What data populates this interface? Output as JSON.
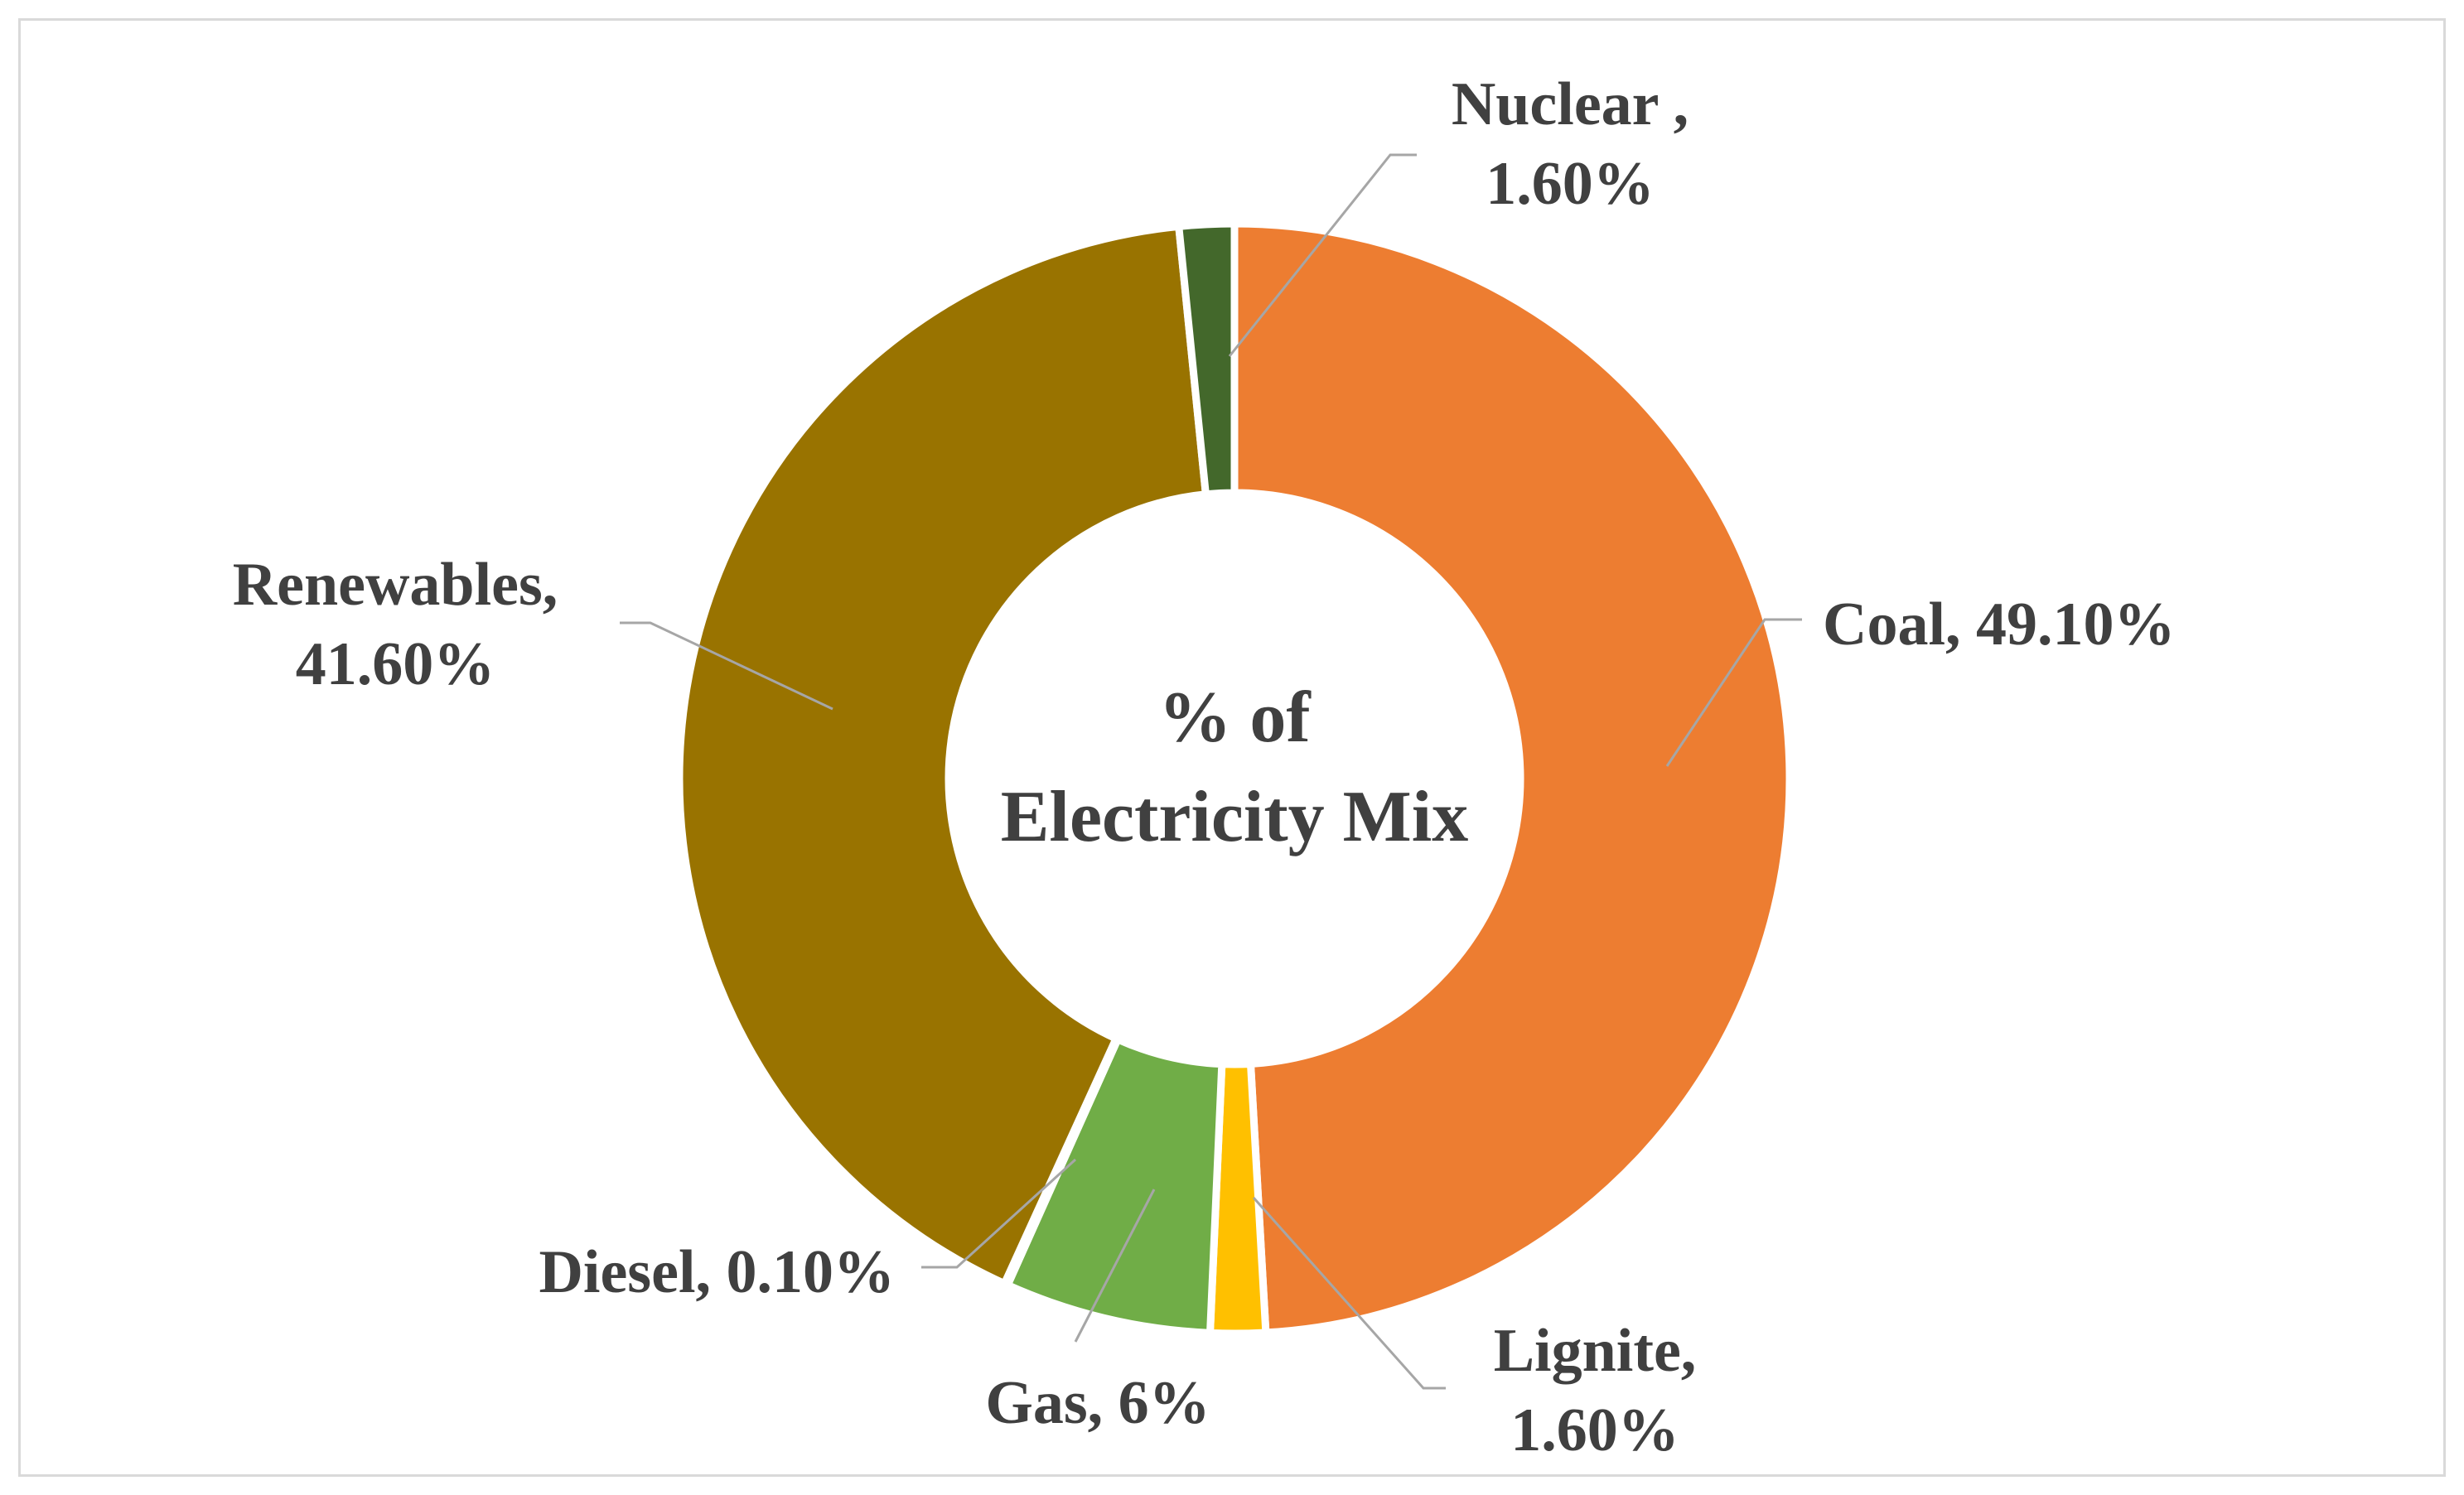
{
  "chart_data": {
    "type": "pie",
    "variant": "doughnut",
    "title_lines": [
      "% of",
      "Electricity Mix"
    ],
    "slices": [
      {
        "key": "coal",
        "label": "Coal",
        "value": 49.1,
        "value_text": "49.10%",
        "color": "#ED7D31",
        "label_lines": [
          "Coal, 49.10%"
        ]
      },
      {
        "key": "lignite",
        "label": "Lignite",
        "value": 1.6,
        "value_text": "1.60%",
        "color": "#FFC000",
        "label_lines": [
          "Lignite,",
          "1.60%"
        ]
      },
      {
        "key": "gas",
        "label": "Gas",
        "value": 6,
        "value_text": "6%",
        "color": "#70AD47",
        "label_lines": [
          "Gas, 6%"
        ]
      },
      {
        "key": "diesel",
        "label": "Diesel",
        "value": 0.1,
        "value_text": "0.10%",
        "color": "#4472C4",
        "label_lines": [
          "Diesel, 0.10%"
        ]
      },
      {
        "key": "renewables",
        "label": "Renewables",
        "value": 41.6,
        "value_text": "41.60%",
        "color": "#997300",
        "label_lines": [
          "Renewables,",
          "41.60%"
        ]
      },
      {
        "key": "nuclear",
        "label": "Nuclear",
        "value": 1.6,
        "value_text": "1.60%",
        "color": "#43682B",
        "label_lines": [
          "Nuclear ,",
          "1.60%"
        ]
      }
    ],
    "legend": "none"
  }
}
